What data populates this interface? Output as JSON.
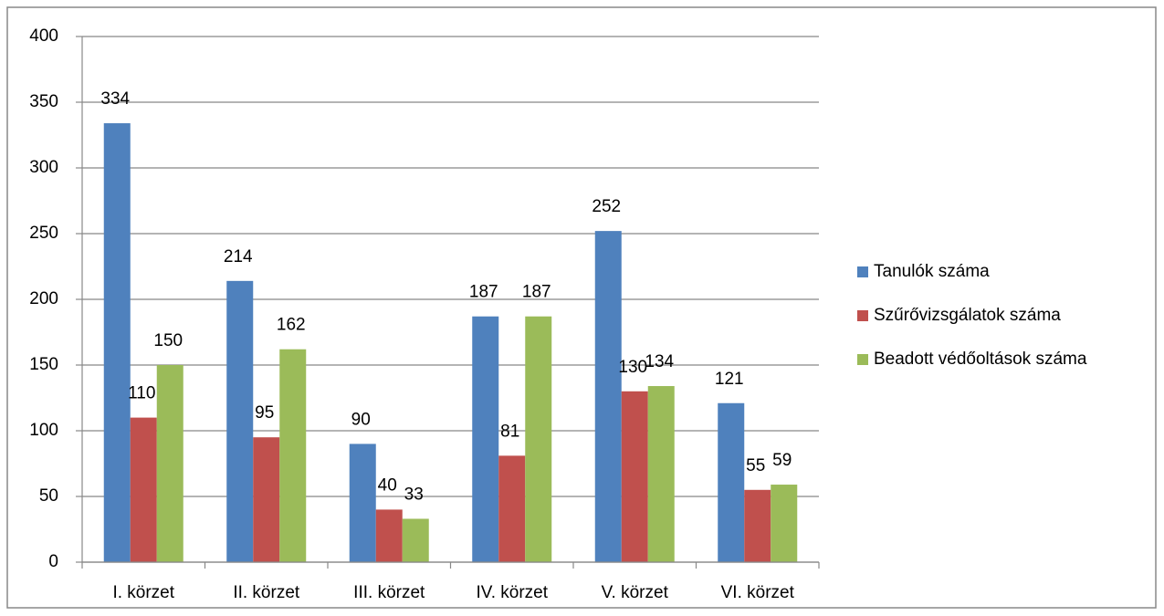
{
  "chart_data": {
    "type": "bar",
    "categories": [
      "I. körzet",
      "II. körzet",
      "III. körzet",
      "IV. körzet",
      "V. körzet",
      "VI. körzet"
    ],
    "series": [
      {
        "name": "Tanulók száma",
        "color": "#4f81bd",
        "values": [
          334,
          214,
          90,
          187,
          252,
          121
        ]
      },
      {
        "name": "Szűrővizsgálatok száma",
        "color": "#c0504d",
        "values": [
          110,
          95,
          40,
          81,
          130,
          55
        ]
      },
      {
        "name": "Beadott védőoltások száma",
        "color": "#9bbb59",
        "values": [
          150,
          162,
          33,
          187,
          134,
          59
        ]
      }
    ],
    "ylim": [
      0,
      400
    ],
    "yticks": [
      0,
      50,
      100,
      150,
      200,
      250,
      300,
      350,
      400
    ],
    "grid": true,
    "legend": "right"
  }
}
